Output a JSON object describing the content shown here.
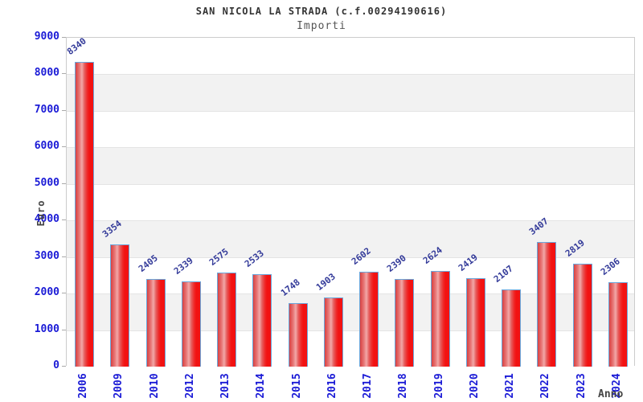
{
  "header": {
    "title": "SAN NICOLA LA STRADA (c.f.00294190616)",
    "subtitle": "Importi"
  },
  "chart_data": {
    "type": "bar",
    "title": "SAN NICOLA LA STRADA (c.f.00294190616)",
    "subtitle": "Importi",
    "xlabel": "Anno",
    "ylabel": "Euro",
    "categories": [
      "2006",
      "2009",
      "2010",
      "2012",
      "2013",
      "2014",
      "2015",
      "2016",
      "2017",
      "2018",
      "2019",
      "2020",
      "2021",
      "2022",
      "2023",
      "2024"
    ],
    "values": [
      8340,
      3354,
      2405,
      2339,
      2575,
      2533,
      1748,
      1903,
      2602,
      2390,
      2624,
      2419,
      2107,
      3407,
      2819,
      2306
    ],
    "ylim": [
      0,
      9000
    ],
    "ytick_step": 1000,
    "yticks": [
      0,
      1000,
      2000,
      3000,
      4000,
      5000,
      6000,
      7000,
      8000,
      9000
    ],
    "grid": "horizontal gridlines with alternating shaded bands",
    "legend": "none",
    "value_labels": "shown above bars, rotated",
    "colors": {
      "bar_fill": "#f21212",
      "bar_fill_highlight": "#f2a8a8",
      "bar_border": "#6aa8dd",
      "tick_label": "#1a1ad6",
      "value_label": "#333a99",
      "band_alt": "#f2f2f2",
      "plot_border": "#cccccc",
      "gridline": "#e4e4e4",
      "title": "#333333",
      "subtitle": "#555555",
      "axis_title": "#444444"
    }
  }
}
